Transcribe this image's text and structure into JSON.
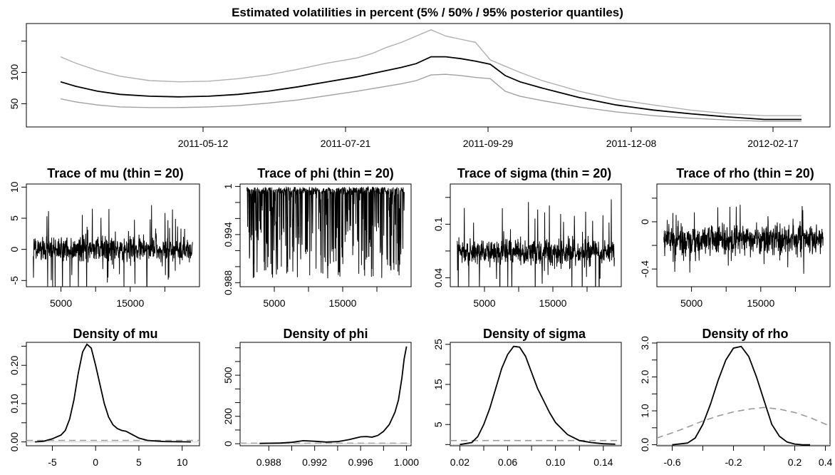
{
  "chart_data": [
    {
      "id": "vol",
      "type": "line",
      "title": "Estimated volatilities in percent (5% / 50% / 95% posterior quantiles)",
      "xlabel": "",
      "ylabel": "",
      "xlim": [
        0,
        1
      ],
      "ylim": [
        13,
        178
      ],
      "x_tick_labels": [
        "2011-05-12",
        "2011-07-21",
        "2011-09-29",
        "2011-12-08",
        "2012-02-17"
      ],
      "x_tick_positions": [
        0.212,
        0.412,
        0.612,
        0.812,
        1.0
      ],
      "y_ticks": [
        50,
        100
      ],
      "y_tick_marks": [
        50,
        100,
        150
      ],
      "series": [
        {
          "quantile": "95%",
          "color": "#b0b0b0",
          "x": [
            0.0,
            0.02,
            0.05,
            0.08,
            0.12,
            0.16,
            0.2,
            0.24,
            0.28,
            0.32,
            0.36,
            0.4,
            0.42,
            0.44,
            0.46,
            0.48,
            0.5,
            0.52,
            0.54,
            0.56,
            0.58,
            0.6,
            0.62,
            0.65,
            0.7,
            0.75,
            0.8,
            0.85,
            0.9,
            0.95,
            1.0
          ],
          "values": [
            125,
            115,
            103,
            94,
            87,
            85,
            86,
            90,
            96,
            105,
            115,
            123,
            130,
            140,
            148,
            158,
            168,
            158,
            153,
            148,
            120,
            110,
            100,
            87,
            70,
            57,
            48,
            40,
            34,
            31,
            31
          ]
        },
        {
          "quantile": "50%",
          "color": "#000000",
          "x": [
            0.0,
            0.02,
            0.05,
            0.08,
            0.12,
            0.16,
            0.2,
            0.24,
            0.28,
            0.32,
            0.36,
            0.4,
            0.42,
            0.44,
            0.46,
            0.48,
            0.5,
            0.52,
            0.54,
            0.56,
            0.58,
            0.6,
            0.62,
            0.65,
            0.7,
            0.75,
            0.8,
            0.85,
            0.9,
            0.95,
            1.0
          ],
          "values": [
            85,
            78,
            70,
            65,
            62,
            61,
            62,
            65,
            70,
            77,
            85,
            93,
            98,
            103,
            108,
            114,
            125,
            125,
            122,
            118,
            113,
            95,
            85,
            75,
            60,
            48,
            40,
            34,
            29,
            25,
            25
          ]
        },
        {
          "quantile": "5%",
          "color": "#a0a0a0",
          "x": [
            0.0,
            0.02,
            0.05,
            0.08,
            0.12,
            0.16,
            0.2,
            0.24,
            0.28,
            0.32,
            0.36,
            0.4,
            0.42,
            0.44,
            0.46,
            0.48,
            0.5,
            0.52,
            0.54,
            0.56,
            0.58,
            0.6,
            0.62,
            0.65,
            0.7,
            0.75,
            0.8,
            0.85,
            0.9,
            0.95,
            1.0
          ],
          "values": [
            58,
            53,
            48,
            45,
            44,
            44,
            45,
            47,
            51,
            56,
            63,
            70,
            74,
            78,
            82,
            87,
            96,
            97,
            95,
            92,
            90,
            70,
            62,
            55,
            45,
            37,
            31,
            27,
            24,
            22,
            22
          ]
        }
      ]
    },
    {
      "id": "tr-mu",
      "type": "line",
      "title": "Trace of mu (thin = 20)",
      "xlim": [
        0,
        25000
      ],
      "ylim": [
        -6,
        10.5
      ],
      "x_ticks": [
        5000,
        15000
      ],
      "x_tick_marks": [
        5000,
        10000,
        15000,
        20000
      ],
      "y_ticks": [
        -5,
        0,
        5,
        10
      ],
      "x_start": 1000,
      "x_end": 24000,
      "trace": {
        "center": 0,
        "spread": 1.5,
        "spike_chance": 0.07,
        "spike_max": 7.5,
        "spike_dir": 0
      }
    },
    {
      "id": "tr-phi",
      "type": "line",
      "title": "Trace of phi (thin = 20)",
      "xlim": [
        0,
        25000
      ],
      "ylim": [
        0.9875,
        1.0003
      ],
      "x_ticks": [
        5000,
        15000
      ],
      "x_tick_marks": [
        5000,
        10000,
        15000,
        20000
      ],
      "y_ticks": [
        0.988,
        0.994,
        1.0
      ],
      "y_tick_marks": [
        0.988,
        0.99,
        0.992,
        0.994,
        0.996,
        0.998,
        1.0
      ],
      "x_start": 1000,
      "x_end": 24000,
      "trace": {
        "center": 0.9995,
        "spread": 0.0004,
        "spike_chance": 0.35,
        "spike_max": 0.011,
        "spike_dir": -1,
        "cap": 0.99995
      }
    },
    {
      "id": "tr-sigma",
      "type": "line",
      "title": "Trace of sigma (thin = 20)",
      "xlim": [
        0,
        25000
      ],
      "ylim": [
        0.03,
        0.145
      ],
      "x_ticks": [
        5000,
        15000
      ],
      "x_tick_marks": [
        5000,
        10000,
        15000,
        20000
      ],
      "y_ticks": [
        0.04,
        0.1
      ],
      "y_tick_marks": [
        0.04,
        0.07,
        0.1,
        0.13
      ],
      "x_start": 1000,
      "x_end": 24000,
      "trace": {
        "center": 0.068,
        "spread": 0.011,
        "spike_chance": 0.08,
        "spike_max": 0.06,
        "spike_dir": 0
      }
    },
    {
      "id": "tr-rho",
      "type": "line",
      "title": "Trace of rho (thin = 20)",
      "xlim": [
        0,
        25000
      ],
      "ylim": [
        -0.55,
        0.32
      ],
      "x_ticks": [
        5000,
        15000
      ],
      "x_tick_marks": [
        5000,
        10000,
        15000,
        20000
      ],
      "y_ticks": [
        -0.4,
        0.0
      ],
      "y_tick_marks": [
        -0.4,
        -0.2,
        0.0,
        0.2
      ],
      "x_start": 1000,
      "x_end": 24000,
      "trace": {
        "center": -0.15,
        "spread": 0.09,
        "spike_chance": 0.08,
        "spike_max": 0.3,
        "spike_dir": 0
      }
    },
    {
      "id": "den-mu",
      "type": "line",
      "title": "Density of mu",
      "xlim": [
        -8,
        12
      ],
      "ylim": [
        -0.01,
        0.26
      ],
      "x_ticks": [
        -5,
        0,
        5,
        10
      ],
      "y_ticks": [
        0.0,
        0.1,
        0.2
      ],
      "y_tick_labels": [
        "0.00",
        "0.10",
        "0.20"
      ],
      "y_tick_marks": [
        0.0,
        0.05,
        0.1,
        0.15,
        0.2,
        0.25
      ],
      "density": {
        "x": [
          -7,
          -6,
          -5,
          -4,
          -3.5,
          -3,
          -2.5,
          -2,
          -1.5,
          -1,
          -0.5,
          0,
          0.5,
          1,
          1.5,
          2,
          2.5,
          3,
          3.5,
          4,
          5,
          6,
          8,
          11
        ],
        "y": [
          0.0,
          0.002,
          0.008,
          0.018,
          0.03,
          0.06,
          0.11,
          0.18,
          0.235,
          0.255,
          0.245,
          0.2,
          0.15,
          0.1,
          0.065,
          0.045,
          0.035,
          0.03,
          0.028,
          0.022,
          0.01,
          0.004,
          0.001,
          0.0
        ]
      },
      "prior": {
        "x": [
          -8,
          12
        ],
        "y": [
          0.004,
          0.004
        ]
      }
    },
    {
      "id": "den-phi",
      "type": "line",
      "title": "Density of phi",
      "xlim": [
        0.9855,
        1.0004
      ],
      "ylim": [
        -15,
        740
      ],
      "x_ticks": [
        0.988,
        0.992,
        0.996,
        1.0
      ],
      "x_tick_labels": [
        "0.988",
        "0.992",
        "0.996",
        "1.000"
      ],
      "x_tick_marks": [
        0.988,
        0.99,
        0.992,
        0.994,
        0.996,
        0.998,
        1.0
      ],
      "y_ticks": [
        0,
        200,
        500
      ],
      "y_tick_marks": [
        0,
        100,
        200,
        300,
        400,
        500,
        600,
        700
      ],
      "density": {
        "x": [
          0.9872,
          0.989,
          0.99,
          0.991,
          0.992,
          0.993,
          0.994,
          0.995,
          0.996,
          0.9965,
          0.997,
          0.9975,
          0.998,
          0.9985,
          0.999,
          0.9993,
          0.9996,
          0.9998,
          1.0
        ],
        "y": [
          2,
          5,
          10,
          22,
          18,
          12,
          15,
          30,
          50,
          52,
          48,
          60,
          90,
          140,
          230,
          320,
          480,
          620,
          710
        ]
      },
      "prior": {
        "x": [
          0.9855,
          1.0004
        ],
        "y": [
          4,
          4
        ]
      }
    },
    {
      "id": "den-sigma",
      "type": "line",
      "title": "Density of sigma",
      "xlim": [
        0.012,
        0.155
      ],
      "ylim": [
        -0.3,
        25.5
      ],
      "x_ticks": [
        0.02,
        0.06,
        0.1,
        0.14
      ],
      "x_tick_labels": [
        "0.02",
        "0.06",
        "0.10",
        "0.14"
      ],
      "x_tick_marks": [
        0.02,
        0.04,
        0.06,
        0.08,
        0.1,
        0.12,
        0.14
      ],
      "y_ticks": [
        5,
        15,
        25
      ],
      "y_tick_marks": [
        0,
        5,
        10,
        15,
        20,
        25
      ],
      "density": {
        "x": [
          0.02,
          0.03,
          0.035,
          0.04,
          0.045,
          0.05,
          0.055,
          0.06,
          0.065,
          0.07,
          0.075,
          0.08,
          0.085,
          0.09,
          0.095,
          0.1,
          0.11,
          0.12,
          0.13,
          0.14,
          0.15
        ],
        "y": [
          0.0,
          0.5,
          2,
          5,
          9,
          14,
          19,
          22.5,
          24.5,
          24.3,
          22,
          18,
          14,
          11,
          8,
          5.5,
          2.5,
          1,
          0.5,
          0.2,
          0.1
        ]
      },
      "prior": {
        "x": [
          0.012,
          0.155
        ],
        "y": [
          1.0,
          1.0
        ]
      }
    },
    {
      "id": "den-rho",
      "type": "line",
      "title": "Density of rho",
      "xlim": [
        -0.7,
        0.43
      ],
      "ylim": [
        -0.03,
        3.02
      ],
      "x_ticks": [
        -0.6,
        -0.2,
        0.2,
        0.4
      ],
      "x_tick_marks": [
        -0.6,
        -0.4,
        -0.2,
        0.0,
        0.2,
        0.4
      ],
      "y_ticks": [
        0.0,
        1.0,
        2.0,
        3.0
      ],
      "y_tick_labels": [
        "0.0",
        "1.0",
        "2.0",
        "3.0"
      ],
      "y_tick_marks": [
        0.0,
        0.5,
        1.0,
        1.5,
        2.0,
        2.5,
        3.0
      ],
      "density": {
        "x": [
          -0.6,
          -0.5,
          -0.45,
          -0.4,
          -0.35,
          -0.3,
          -0.25,
          -0.2,
          -0.15,
          -0.1,
          -0.05,
          0.0,
          0.05,
          0.1,
          0.15,
          0.2,
          0.25,
          0.3
        ],
        "y": [
          0.0,
          0.05,
          0.2,
          0.6,
          1.2,
          1.9,
          2.5,
          2.85,
          2.9,
          2.6,
          2.0,
          1.3,
          0.6,
          0.25,
          0.08,
          0.02,
          0.0,
          0.0
        ]
      },
      "prior": {
        "x": [
          -0.7,
          -0.6,
          -0.5,
          -0.4,
          -0.3,
          -0.2,
          -0.1,
          0.0,
          0.1,
          0.2,
          0.3,
          0.43
        ],
        "y": [
          0.2,
          0.35,
          0.52,
          0.7,
          0.85,
          0.97,
          1.05,
          1.1,
          1.05,
          0.95,
          0.8,
          0.55
        ]
      }
    }
  ]
}
